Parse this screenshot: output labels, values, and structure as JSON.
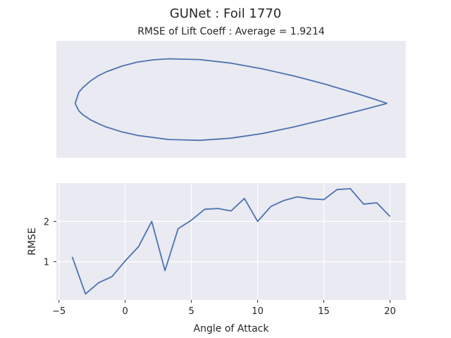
{
  "header": {
    "title": "GUNet   :   Foil 1770",
    "subtitle": "RMSE of Lift Coeff : Average = 1.9214"
  },
  "chart_data": [
    {
      "type": "line",
      "subplot": "airfoil-shape",
      "axes_visible": false,
      "x": [
        1.0,
        0.95,
        0.9,
        0.8,
        0.7,
        0.6,
        0.5,
        0.4,
        0.3,
        0.25,
        0.2,
        0.15,
        0.1,
        0.075,
        0.05,
        0.025,
        0.0125,
        0.0,
        0.0125,
        0.025,
        0.05,
        0.075,
        0.1,
        0.15,
        0.2,
        0.3,
        0.4,
        0.5,
        0.6,
        0.7,
        0.8,
        0.9,
        0.95,
        1.0
      ],
      "y": [
        0.0,
        0.019,
        0.037,
        0.071,
        0.101,
        0.127,
        0.148,
        0.161,
        0.164,
        0.16,
        0.152,
        0.137,
        0.116,
        0.102,
        0.083,
        0.058,
        0.042,
        0.0,
        -0.028,
        -0.042,
        -0.061,
        -0.075,
        -0.087,
        -0.105,
        -0.118,
        -0.133,
        -0.136,
        -0.128,
        -0.111,
        -0.087,
        -0.059,
        -0.03,
        -0.015,
        0.0
      ],
      "xlim": [
        -0.06,
        1.06
      ],
      "ylim": [
        -0.2,
        0.23
      ]
    },
    {
      "type": "line",
      "subplot": "rmse-vs-aoa",
      "xlabel": "Angle of Attack",
      "ylabel": "RMSE",
      "x": [
        -4,
        -3,
        -2,
        -1,
        0,
        1,
        2,
        3,
        4,
        5,
        6,
        7,
        8,
        9,
        10,
        11,
        12,
        13,
        14,
        15,
        16,
        17,
        18,
        19,
        20
      ],
      "values": [
        1.12,
        0.2,
        0.48,
        0.63,
        1.02,
        1.37,
        2.0,
        0.78,
        1.82,
        2.03,
        2.3,
        2.32,
        2.26,
        2.57,
        2.0,
        2.37,
        2.52,
        2.61,
        2.56,
        2.54,
        2.79,
        2.81,
        2.43,
        2.46,
        2.12
      ],
      "xlim": [
        -5.2,
        21.2
      ],
      "ylim": [
        0.05,
        2.95
      ],
      "xticks": [
        -5,
        0,
        5,
        10,
        15,
        20
      ],
      "yticks": [
        1,
        2
      ],
      "grid": true
    }
  ]
}
